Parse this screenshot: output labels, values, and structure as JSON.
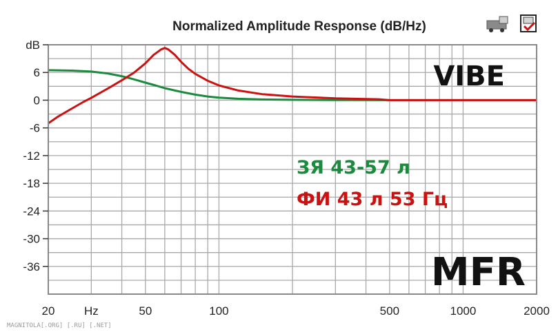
{
  "chart_data": {
    "type": "line",
    "title": "Normalized Amplitude Response (dB/Hz)",
    "x_scale": "log",
    "xlim": [
      20,
      2000
    ],
    "ylim": [
      -42,
      12
    ],
    "grid": true,
    "x_ticks": [
      {
        "value": 20,
        "label": "20"
      },
      {
        "value": 30,
        "label": "Hz"
      },
      {
        "value": 50,
        "label": "50"
      },
      {
        "value": 100,
        "label": "100"
      },
      {
        "value": 500,
        "label": "500"
      },
      {
        "value": 1000,
        "label": "1000"
      },
      {
        "value": 2000,
        "label": "2000"
      }
    ],
    "y_ticks": [
      {
        "value": 12,
        "label": "dB"
      },
      {
        "value": 6,
        "label": "6"
      },
      {
        "value": 0,
        "label": "0"
      },
      {
        "value": -6,
        "label": "-6"
      },
      {
        "value": -12,
        "label": "-12"
      },
      {
        "value": -18,
        "label": "-18"
      },
      {
        "value": -24,
        "label": "-24"
      },
      {
        "value": -30,
        "label": "-30"
      },
      {
        "value": -36,
        "label": "-36"
      }
    ],
    "series": [
      {
        "name": "ЗЯ 43-57 л",
        "color": "#1a8a3c",
        "points": [
          [
            20,
            6.5
          ],
          [
            25,
            6.4
          ],
          [
            30,
            6.2
          ],
          [
            35,
            5.8
          ],
          [
            40,
            5.2
          ],
          [
            45,
            4.5
          ],
          [
            50,
            3.8
          ],
          [
            55,
            3.2
          ],
          [
            60,
            2.6
          ],
          [
            70,
            1.8
          ],
          [
            80,
            1.2
          ],
          [
            90,
            0.8
          ],
          [
            100,
            0.55
          ],
          [
            120,
            0.3
          ],
          [
            150,
            0.15
          ],
          [
            200,
            0.08
          ],
          [
            300,
            0.03
          ],
          [
            500,
            0.0
          ],
          [
            1000,
            0.0
          ],
          [
            2000,
            0.0
          ]
        ]
      },
      {
        "name": "ФИ 43 л 53 Гц",
        "color": "#cc1111",
        "points": [
          [
            20,
            -5
          ],
          [
            22,
            -3.5
          ],
          [
            25,
            -1.8
          ],
          [
            28,
            -0.3
          ],
          [
            30,
            0.5
          ],
          [
            35,
            2.5
          ],
          [
            40,
            4.3
          ],
          [
            45,
            6.0
          ],
          [
            50,
            8.0
          ],
          [
            54,
            9.8
          ],
          [
            58,
            11.0
          ],
          [
            60,
            11.3
          ],
          [
            62,
            11.0
          ],
          [
            66,
            9.8
          ],
          [
            70,
            8.3
          ],
          [
            75,
            6.8
          ],
          [
            80,
            5.7
          ],
          [
            90,
            4.2
          ],
          [
            100,
            3.2
          ],
          [
            120,
            2.1
          ],
          [
            150,
            1.3
          ],
          [
            200,
            0.8
          ],
          [
            300,
            0.4
          ],
          [
            450,
            0.2
          ],
          [
            500,
            0.0
          ],
          [
            1000,
            0.0
          ],
          [
            2000,
            0.0
          ]
        ]
      }
    ]
  },
  "labels": {
    "brand": "VIBE",
    "mfr": "MFR",
    "legend_green": "ЗЯ 43-57 л",
    "legend_red": "ФИ 43 л 53 Гц",
    "watermark": "MAGNITOLA[.ORG] [.RU] [.NET]"
  },
  "colors": {
    "grid": "#a8a8a8",
    "frame": "#888888",
    "green": "#1a8a3c",
    "red": "#cc1111"
  },
  "icons": [
    "truck-icon",
    "disk-icon"
  ]
}
